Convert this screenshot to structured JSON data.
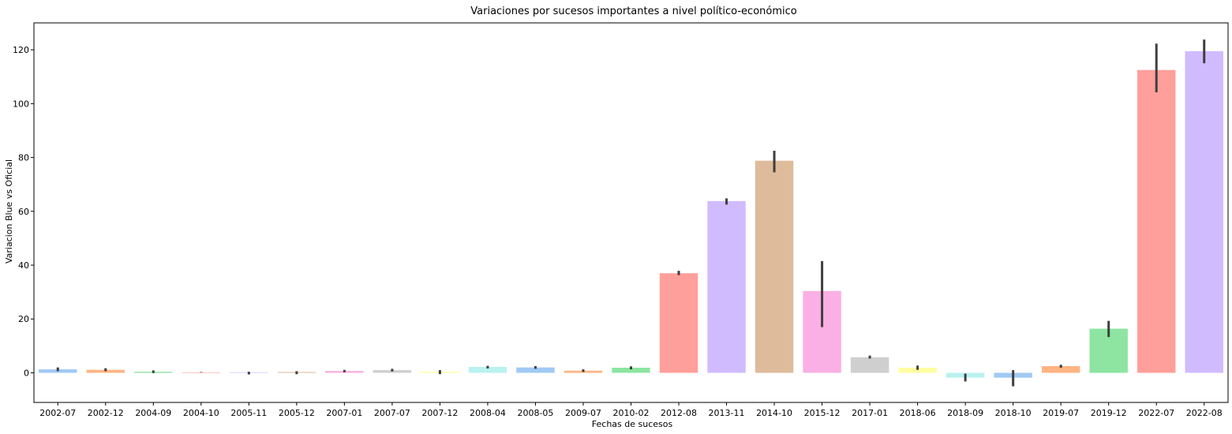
{
  "chart_data": {
    "type": "bar",
    "title": "Variaciones por sucesos importantes a nivel político-económico",
    "xlabel": "Fechas de sucesos",
    "ylabel": "Variacion Blue vs Oficial",
    "ylim": [
      -11,
      130
    ],
    "yticks": [
      0,
      20,
      40,
      60,
      80,
      100,
      120
    ],
    "grid": false,
    "legend": "none",
    "error_bars": true,
    "categories": [
      "2002-07",
      "2002-12",
      "2004-09",
      "2004-10",
      "2005-11",
      "2005-12",
      "2007-01",
      "2007-07",
      "2007-12",
      "2008-04",
      "2008-05",
      "2009-07",
      "2010-02",
      "2012-08",
      "2013-11",
      "2014-10",
      "2015-12",
      "2017-01",
      "2018-06",
      "2018-09",
      "2018-10",
      "2019-07",
      "2019-12",
      "2022-07",
      "2022-08"
    ],
    "values": [
      1.3,
      1.1,
      0.4,
      0.2,
      0.2,
      0.3,
      0.7,
      1.0,
      0.4,
      2.2,
      2.0,
      0.8,
      1.9,
      37.0,
      63.8,
      78.8,
      30.4,
      5.8,
      1.9,
      -1.8,
      -1.8,
      2.5,
      16.4,
      112.5,
      119.5
    ],
    "error_low": [
      0.6,
      0.6,
      -0.1,
      0.1,
      -0.6,
      -0.5,
      0.2,
      0.5,
      -0.5,
      1.6,
      1.5,
      0.3,
      1.3,
      36.3,
      62.5,
      74.5,
      17.0,
      5.3,
      1.1,
      -3.2,
      -5.0,
      1.9,
      13.3,
      104.2,
      115.0
    ],
    "error_high": [
      2.0,
      1.7,
      0.9,
      0.3,
      0.4,
      0.6,
      1.1,
      1.5,
      1.0,
      2.6,
      2.5,
      1.3,
      2.4,
      37.9,
      64.8,
      82.5,
      41.5,
      6.4,
      2.7,
      -0.3,
      1.0,
      3.0,
      19.3,
      122.3,
      123.8
    ],
    "colors": [
      "#a1c9f4",
      "#ffb482",
      "#8de5a1",
      "#ff9f9b",
      "#d0bbff",
      "#debb9b",
      "#fab0e4",
      "#cfcfcf",
      "#fffea3",
      "#b9f2f0",
      "#a1c9f4",
      "#ffb482",
      "#8de5a1",
      "#ff9f9b",
      "#d0bbff",
      "#debb9b",
      "#fab0e4",
      "#cfcfcf",
      "#fffea3",
      "#b9f2f0",
      "#a1c9f4",
      "#ffb482",
      "#8de5a1",
      "#ff9f9b",
      "#d0bbff"
    ],
    "error_bar_color": "#3f3f3f"
  }
}
